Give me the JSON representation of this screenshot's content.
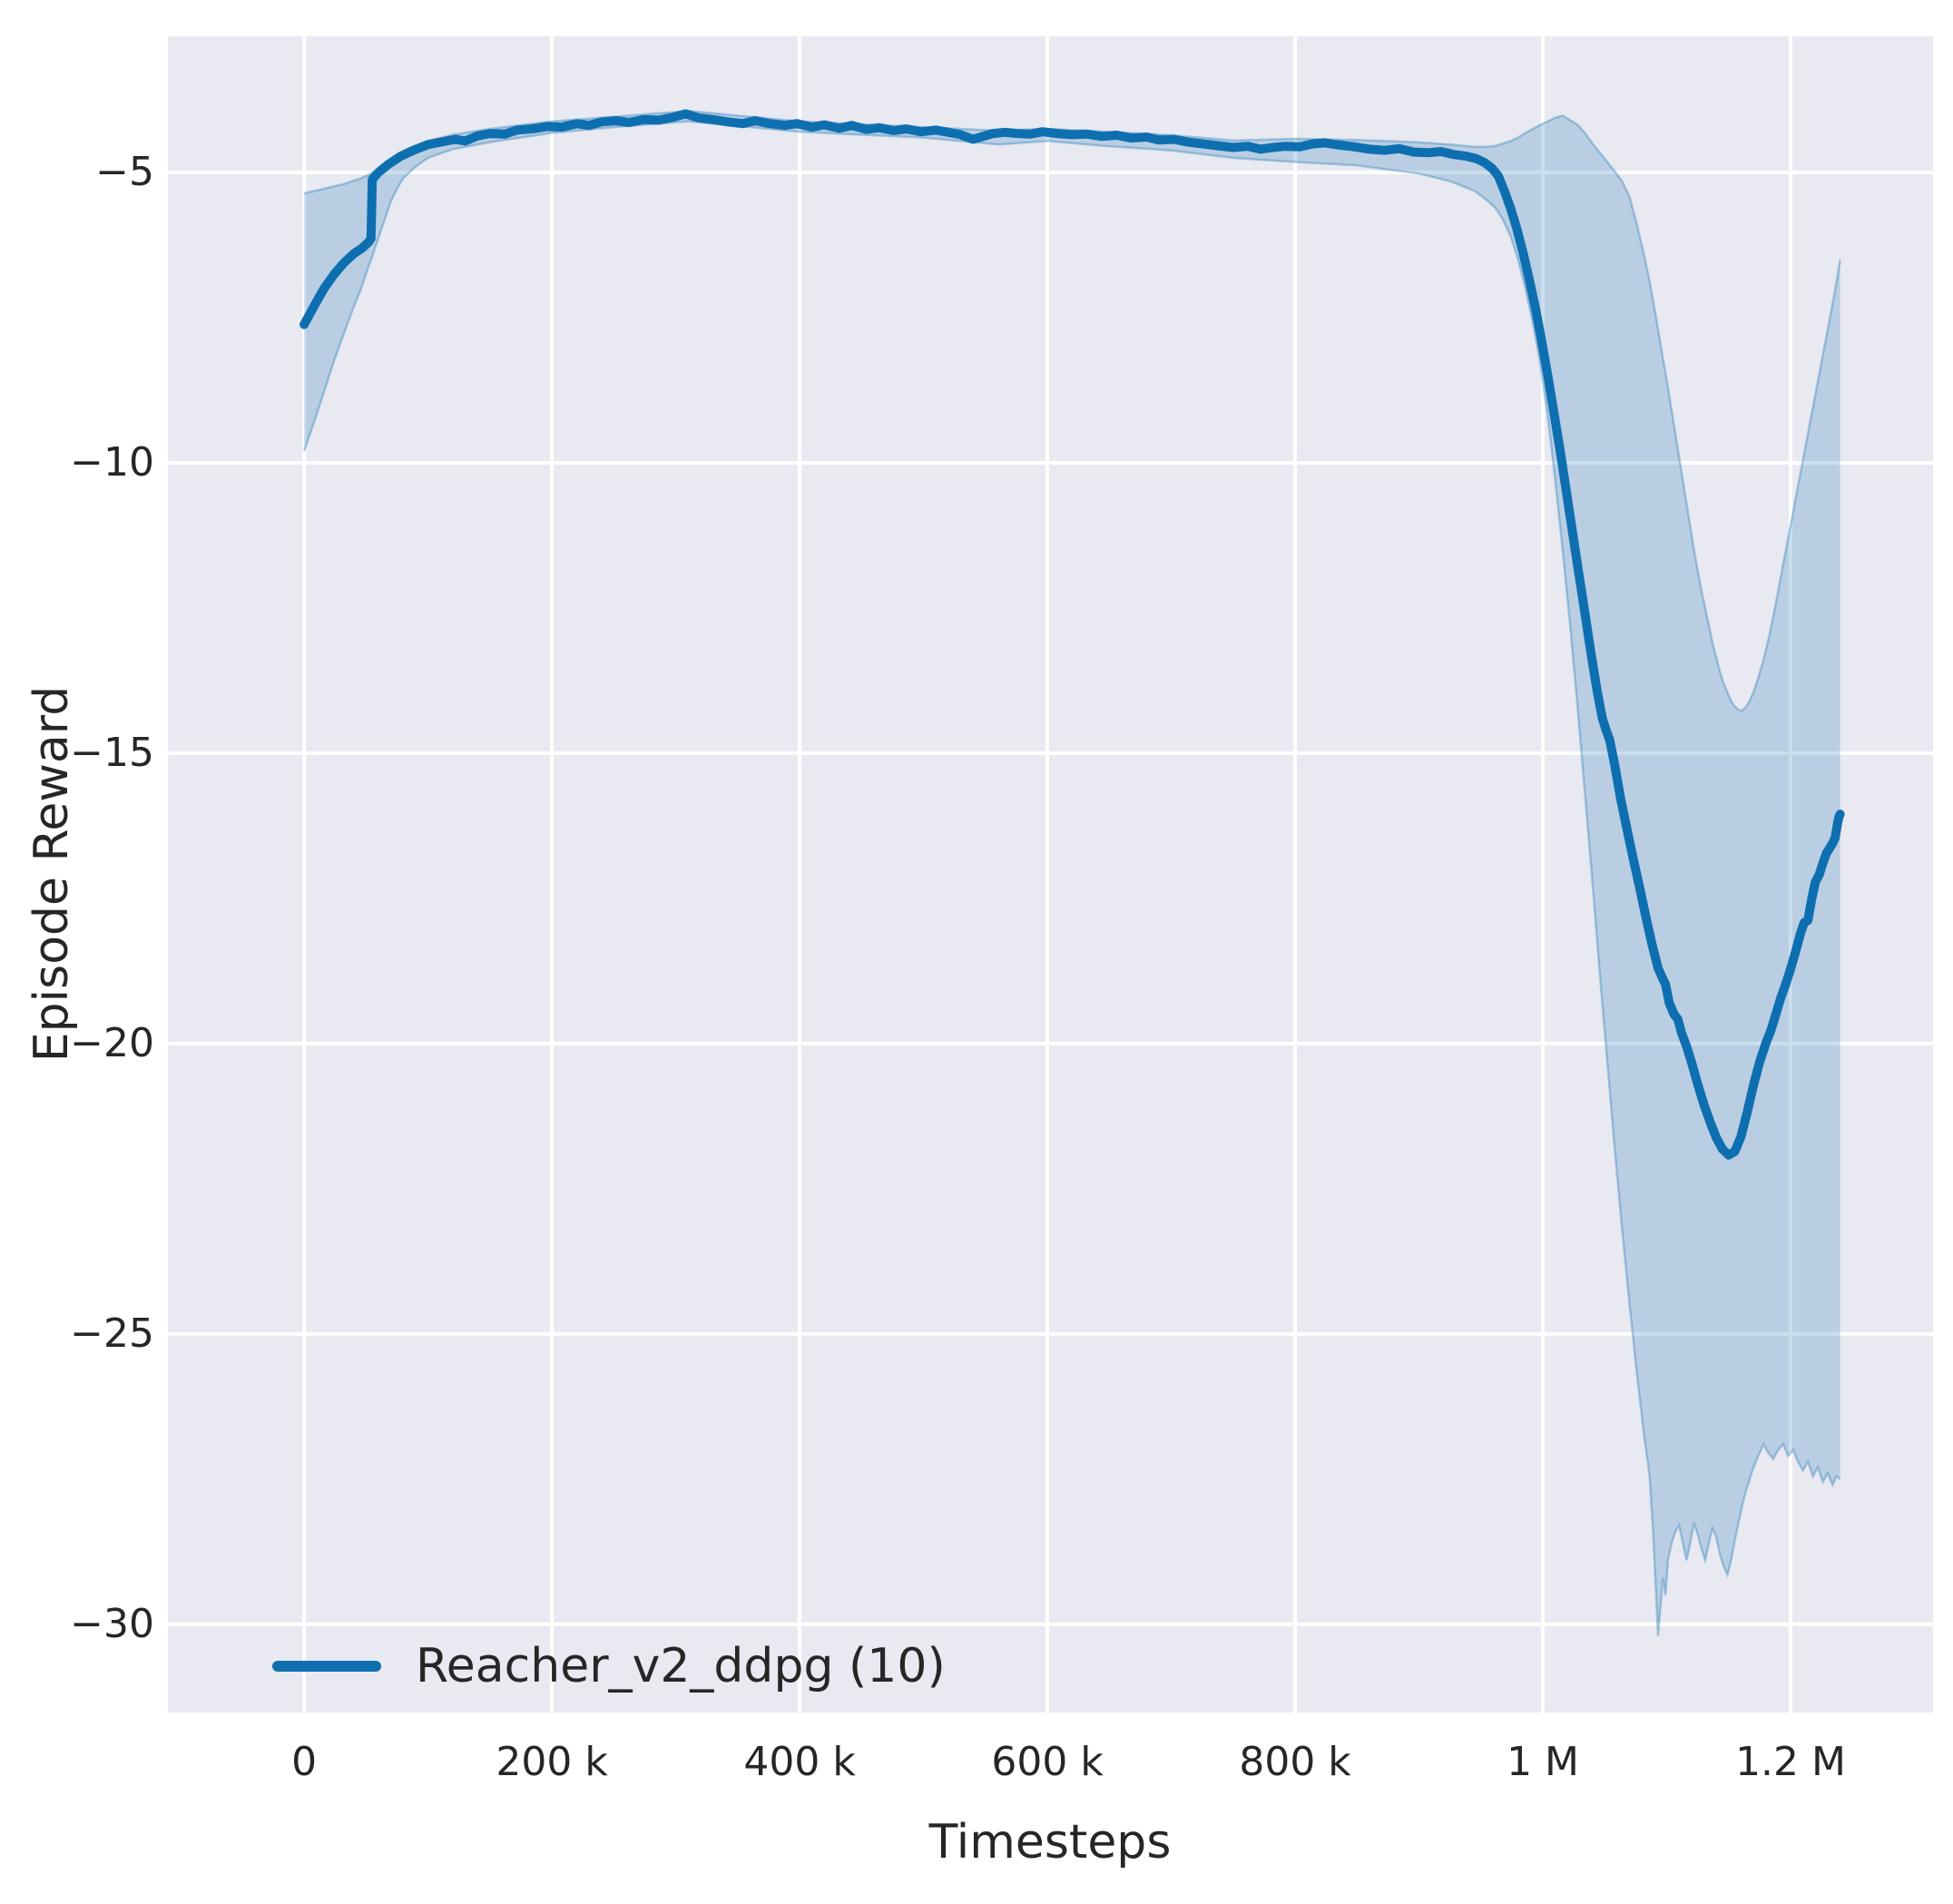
{
  "figure": {
    "background": "#ffffff",
    "plot_background": "#e9e9f1",
    "grid_color": "#ffffff",
    "text_color": "#262626",
    "line_color": "#0e6fb0",
    "band_fill": "rgba(14,111,176,0.22)",
    "band_edge": "rgba(14,111,176,0.32)"
  },
  "chart_data": {
    "type": "line",
    "title": "",
    "xlabel": "Timesteps",
    "ylabel": "Episode Reward",
    "grid": true,
    "legend_position": "lower-left",
    "legend": {
      "label": "Reacher_v2_ddpg (10)"
    },
    "xlim": [
      -110000,
      1315000
    ],
    "ylim": [
      -31.52,
      -2.656
    ],
    "x_unit_note": "series x values are in thousands of timesteps",
    "x_ticks": [
      {
        "value": 0,
        "label": "0"
      },
      {
        "value": 200000,
        "label": "200 k"
      },
      {
        "value": 400000,
        "label": "400 k"
      },
      {
        "value": 600000,
        "label": "600 k"
      },
      {
        "value": 800000,
        "label": "800 k"
      },
      {
        "value": 1000000,
        "label": "1 M"
      },
      {
        "value": 1200000,
        "label": "1.2 M"
      }
    ],
    "y_ticks": [
      {
        "value": -5,
        "label": "−5"
      },
      {
        "value": -10,
        "label": "−10"
      },
      {
        "value": -15,
        "label": "−15"
      },
      {
        "value": -20,
        "label": "−20"
      },
      {
        "value": -25,
        "label": "−25"
      },
      {
        "value": -30,
        "label": "−30"
      }
    ],
    "series": [
      {
        "name": "Reacher_v2_ddpg (10)",
        "points": [
          [
            0,
            -7.62
          ],
          [
            8,
            -7.3
          ],
          [
            16,
            -7.0
          ],
          [
            24,
            -6.76
          ],
          [
            32,
            -6.56
          ],
          [
            40,
            -6.4
          ],
          [
            47,
            -6.3
          ],
          [
            52,
            -6.2
          ],
          [
            54,
            -6.14
          ],
          [
            55,
            -5.12
          ],
          [
            60,
            -5.0
          ],
          [
            68,
            -4.86
          ],
          [
            78,
            -4.72
          ],
          [
            88,
            -4.62
          ],
          [
            100,
            -4.52
          ],
          [
            112,
            -4.47
          ],
          [
            122,
            -4.43
          ],
          [
            130,
            -4.46
          ],
          [
            140,
            -4.37
          ],
          [
            150,
            -4.33
          ],
          [
            162,
            -4.34
          ],
          [
            172,
            -4.27
          ],
          [
            184,
            -4.25
          ],
          [
            196,
            -4.21
          ],
          [
            208,
            -4.22
          ],
          [
            220,
            -4.16
          ],
          [
            230,
            -4.19
          ],
          [
            240,
            -4.13
          ],
          [
            252,
            -4.11
          ],
          [
            262,
            -4.14
          ],
          [
            274,
            -4.09
          ],
          [
            286,
            -4.1
          ],
          [
            296,
            -4.06
          ],
          [
            308,
            -3.99
          ],
          [
            318,
            -4.06
          ],
          [
            330,
            -4.09
          ],
          [
            342,
            -4.13
          ],
          [
            354,
            -4.16
          ],
          [
            364,
            -4.11
          ],
          [
            376,
            -4.16
          ],
          [
            388,
            -4.19
          ],
          [
            398,
            -4.16
          ],
          [
            410,
            -4.22
          ],
          [
            420,
            -4.18
          ],
          [
            432,
            -4.24
          ],
          [
            442,
            -4.19
          ],
          [
            454,
            -4.26
          ],
          [
            464,
            -4.23
          ],
          [
            476,
            -4.28
          ],
          [
            486,
            -4.25
          ],
          [
            498,
            -4.3
          ],
          [
            510,
            -4.27
          ],
          [
            520,
            -4.31
          ],
          [
            530,
            -4.35
          ],
          [
            540,
            -4.43
          ],
          [
            548,
            -4.38
          ],
          [
            556,
            -4.33
          ],
          [
            566,
            -4.31
          ],
          [
            576,
            -4.33
          ],
          [
            586,
            -4.34
          ],
          [
            596,
            -4.3
          ],
          [
            608,
            -4.33
          ],
          [
            620,
            -4.35
          ],
          [
            632,
            -4.34
          ],
          [
            644,
            -4.38
          ],
          [
            656,
            -4.36
          ],
          [
            668,
            -4.41
          ],
          [
            680,
            -4.39
          ],
          [
            690,
            -4.44
          ],
          [
            702,
            -4.43
          ],
          [
            714,
            -4.48
          ],
          [
            726,
            -4.51
          ],
          [
            738,
            -4.54
          ],
          [
            750,
            -4.57
          ],
          [
            762,
            -4.55
          ],
          [
            772,
            -4.6
          ],
          [
            782,
            -4.57
          ],
          [
            792,
            -4.55
          ],
          [
            804,
            -4.56
          ],
          [
            814,
            -4.51
          ],
          [
            824,
            -4.49
          ],
          [
            836,
            -4.53
          ],
          [
            848,
            -4.56
          ],
          [
            860,
            -4.6
          ],
          [
            872,
            -4.62
          ],
          [
            884,
            -4.59
          ],
          [
            896,
            -4.65
          ],
          [
            908,
            -4.66
          ],
          [
            918,
            -4.64
          ],
          [
            928,
            -4.69
          ],
          [
            938,
            -4.72
          ],
          [
            946,
            -4.76
          ],
          [
            953,
            -4.83
          ],
          [
            959,
            -4.93
          ],
          [
            964,
            -5.06
          ],
          [
            969,
            -5.32
          ],
          [
            974,
            -5.62
          ],
          [
            979,
            -5.97
          ],
          [
            984,
            -6.38
          ],
          [
            989,
            -6.84
          ],
          [
            994,
            -7.34
          ],
          [
            999,
            -7.9
          ],
          [
            1004,
            -8.5
          ],
          [
            1009,
            -9.14
          ],
          [
            1014,
            -9.8
          ],
          [
            1019,
            -10.5
          ],
          [
            1024,
            -11.2
          ],
          [
            1029,
            -11.9
          ],
          [
            1034,
            -12.6
          ],
          [
            1039,
            -13.3
          ],
          [
            1044,
            -13.95
          ],
          [
            1048,
            -14.4
          ],
          [
            1051,
            -14.6
          ],
          [
            1054,
            -14.78
          ],
          [
            1058,
            -15.2
          ],
          [
            1063,
            -15.8
          ],
          [
            1068,
            -16.32
          ],
          [
            1073,
            -16.82
          ],
          [
            1078,
            -17.3
          ],
          [
            1083,
            -17.8
          ],
          [
            1088,
            -18.28
          ],
          [
            1093,
            -18.7
          ],
          [
            1096,
            -18.85
          ],
          [
            1099,
            -18.98
          ],
          [
            1102,
            -19.3
          ],
          [
            1106,
            -19.5
          ],
          [
            1109,
            -19.58
          ],
          [
            1112,
            -19.82
          ],
          [
            1116,
            -20.05
          ],
          [
            1120,
            -20.32
          ],
          [
            1125,
            -20.7
          ],
          [
            1130,
            -21.05
          ],
          [
            1135,
            -21.35
          ],
          [
            1140,
            -21.62
          ],
          [
            1145,
            -21.82
          ],
          [
            1150,
            -21.92
          ],
          [
            1155,
            -21.86
          ],
          [
            1160,
            -21.6
          ],
          [
            1165,
            -21.18
          ],
          [
            1170,
            -20.72
          ],
          [
            1175,
            -20.32
          ],
          [
            1180,
            -20.0
          ],
          [
            1184,
            -19.78
          ],
          [
            1188,
            -19.5
          ],
          [
            1192,
            -19.22
          ],
          [
            1196,
            -18.98
          ],
          [
            1200,
            -18.72
          ],
          [
            1204,
            -18.42
          ],
          [
            1208,
            -18.1
          ],
          [
            1211,
            -17.92
          ],
          [
            1214,
            -17.88
          ],
          [
            1217,
            -17.52
          ],
          [
            1220,
            -17.22
          ],
          [
            1223,
            -17.1
          ],
          [
            1226,
            -16.9
          ],
          [
            1229,
            -16.72
          ],
          [
            1232,
            -16.62
          ],
          [
            1234,
            -16.55
          ],
          [
            1236,
            -16.45
          ],
          [
            1238,
            -16.2
          ],
          [
            1239,
            -16.1
          ],
          [
            1240,
            -16.05
          ]
        ]
      }
    ],
    "band": {
      "name": "confidence-interval",
      "x": [
        0,
        8,
        16,
        24,
        32,
        40,
        46,
        52,
        55,
        58,
        62,
        66,
        70,
        75,
        80,
        90,
        100,
        120,
        150,
        200,
        250,
        310,
        400,
        500,
        560,
        600,
        650,
        700,
        750,
        800,
        850,
        900,
        925,
        945,
        955,
        962,
        968,
        974,
        980,
        986,
        992,
        998,
        1004,
        1010,
        1016,
        1022,
        1028,
        1034,
        1040,
        1046,
        1052,
        1058,
        1064,
        1070,
        1076,
        1082,
        1086,
        1089,
        1091,
        1093,
        1095,
        1097,
        1099,
        1101,
        1104,
        1107,
        1110,
        1113,
        1116,
        1119,
        1122,
        1125,
        1128,
        1131,
        1134,
        1137,
        1140,
        1143,
        1146,
        1149,
        1152,
        1155,
        1158,
        1161,
        1164,
        1167,
        1170,
        1174,
        1178,
        1182,
        1186,
        1190,
        1194,
        1198,
        1202,
        1206,
        1210,
        1214,
        1218,
        1222,
        1226,
        1230,
        1234,
        1237,
        1240
      ],
      "upper": [
        -5.36,
        -5.32,
        -5.28,
        -5.24,
        -5.2,
        -5.14,
        -5.1,
        -5.04,
        -5.0,
        -4.97,
        -4.93,
        -4.88,
        -4.83,
        -4.77,
        -4.7,
        -4.58,
        -4.46,
        -4.35,
        -4.25,
        -4.12,
        -4.04,
        -3.94,
        -4.12,
        -4.22,
        -4.28,
        -4.25,
        -4.3,
        -4.36,
        -4.45,
        -4.42,
        -4.44,
        -4.48,
        -4.52,
        -4.56,
        -4.56,
        -4.54,
        -4.5,
        -4.46,
        -4.4,
        -4.32,
        -4.25,
        -4.18,
        -4.12,
        -4.06,
        -4.02,
        -4.1,
        -4.18,
        -4.32,
        -4.5,
        -4.66,
        -4.82,
        -4.98,
        -5.15,
        -5.42,
        -5.9,
        -6.45,
        -6.85,
        -7.2,
        -7.45,
        -7.7,
        -7.95,
        -8.2,
        -8.45,
        -8.7,
        -9.1,
        -9.5,
        -9.9,
        -10.3,
        -10.7,
        -11.1,
        -11.5,
        -11.85,
        -12.2,
        -12.5,
        -12.8,
        -13.1,
        -13.35,
        -13.6,
        -13.8,
        -13.95,
        -14.1,
        -14.2,
        -14.25,
        -14.27,
        -14.2,
        -14.1,
        -13.95,
        -13.7,
        -13.4,
        -13.05,
        -12.65,
        -12.2,
        -11.75,
        -11.3,
        -10.85,
        -10.4,
        -9.95,
        -9.5,
        -9.05,
        -8.6,
        -8.15,
        -7.7,
        -7.25,
        -6.9,
        -6.5
      ],
      "lower": [
        -9.8,
        -9.3,
        -8.78,
        -8.25,
        -7.78,
        -7.32,
        -7.0,
        -6.62,
        -6.45,
        -6.25,
        -6.0,
        -5.75,
        -5.5,
        -5.28,
        -5.1,
        -4.9,
        -4.75,
        -4.6,
        -4.48,
        -4.32,
        -4.22,
        -4.12,
        -4.3,
        -4.4,
        -4.52,
        -4.46,
        -4.55,
        -4.62,
        -4.75,
        -4.82,
        -4.88,
        -5.02,
        -5.15,
        -5.32,
        -5.48,
        -5.62,
        -5.82,
        -6.1,
        -6.5,
        -7.0,
        -7.6,
        -8.3,
        -9.2,
        -10.3,
        -11.5,
        -12.8,
        -14.2,
        -15.7,
        -17.2,
        -18.8,
        -20.3,
        -21.8,
        -23.2,
        -24.5,
        -25.7,
        -26.8,
        -27.4,
        -28.4,
        -29.3,
        -30.2,
        -29.7,
        -29.2,
        -29.5,
        -28.9,
        -28.6,
        -28.4,
        -28.3,
        -28.6,
        -28.9,
        -28.6,
        -28.25,
        -28.45,
        -28.7,
        -28.9,
        -28.6,
        -28.35,
        -28.5,
        -28.8,
        -29.0,
        -29.15,
        -28.9,
        -28.55,
        -28.25,
        -27.95,
        -27.7,
        -27.5,
        -27.3,
        -27.1,
        -26.9,
        -27.05,
        -27.15,
        -27.0,
        -26.9,
        -27.1,
        -27.0,
        -27.2,
        -27.35,
        -27.2,
        -27.45,
        -27.3,
        -27.55,
        -27.4,
        -27.6,
        -27.45,
        -27.5
      ]
    }
  }
}
